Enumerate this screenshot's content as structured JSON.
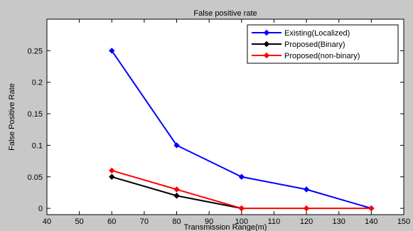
{
  "chart_data": {
    "type": "line",
    "title": "False positive rate",
    "xlabel": "Transmission Range(m)",
    "ylabel": "False Positive Rate",
    "xlim": [
      40,
      150
    ],
    "ylim": [
      -0.01,
      0.3
    ],
    "xticks": [
      40,
      50,
      60,
      70,
      80,
      90,
      100,
      110,
      120,
      130,
      140,
      150
    ],
    "yticks": [
      0,
      0.05,
      0.1,
      0.15,
      0.2,
      0.25
    ],
    "ytick_labels": [
      "0",
      "0.05",
      "0.1",
      "0.15",
      "0.2",
      "0.25"
    ],
    "grid": false,
    "legend_position": "top-right",
    "series": [
      {
        "name": "Existing(Localized)",
        "color": "#0000ff",
        "marker": "diamond",
        "x": [
          60,
          80,
          100,
          120,
          140
        ],
        "y": [
          0.25,
          0.1,
          0.05,
          0.03,
          0.0
        ]
      },
      {
        "name": "Proposed(Binary)",
        "color": "#000000",
        "marker": "diamond",
        "x": [
          60,
          80,
          100
        ],
        "y": [
          0.05,
          0.02,
          0.0
        ]
      },
      {
        "name": "Proposed(non-binary)",
        "color": "#ff0000",
        "marker": "diamond",
        "x": [
          60,
          80,
          100,
          120,
          140
        ],
        "y": [
          0.06,
          0.03,
          0.0,
          0.0,
          0.0
        ]
      }
    ]
  }
}
